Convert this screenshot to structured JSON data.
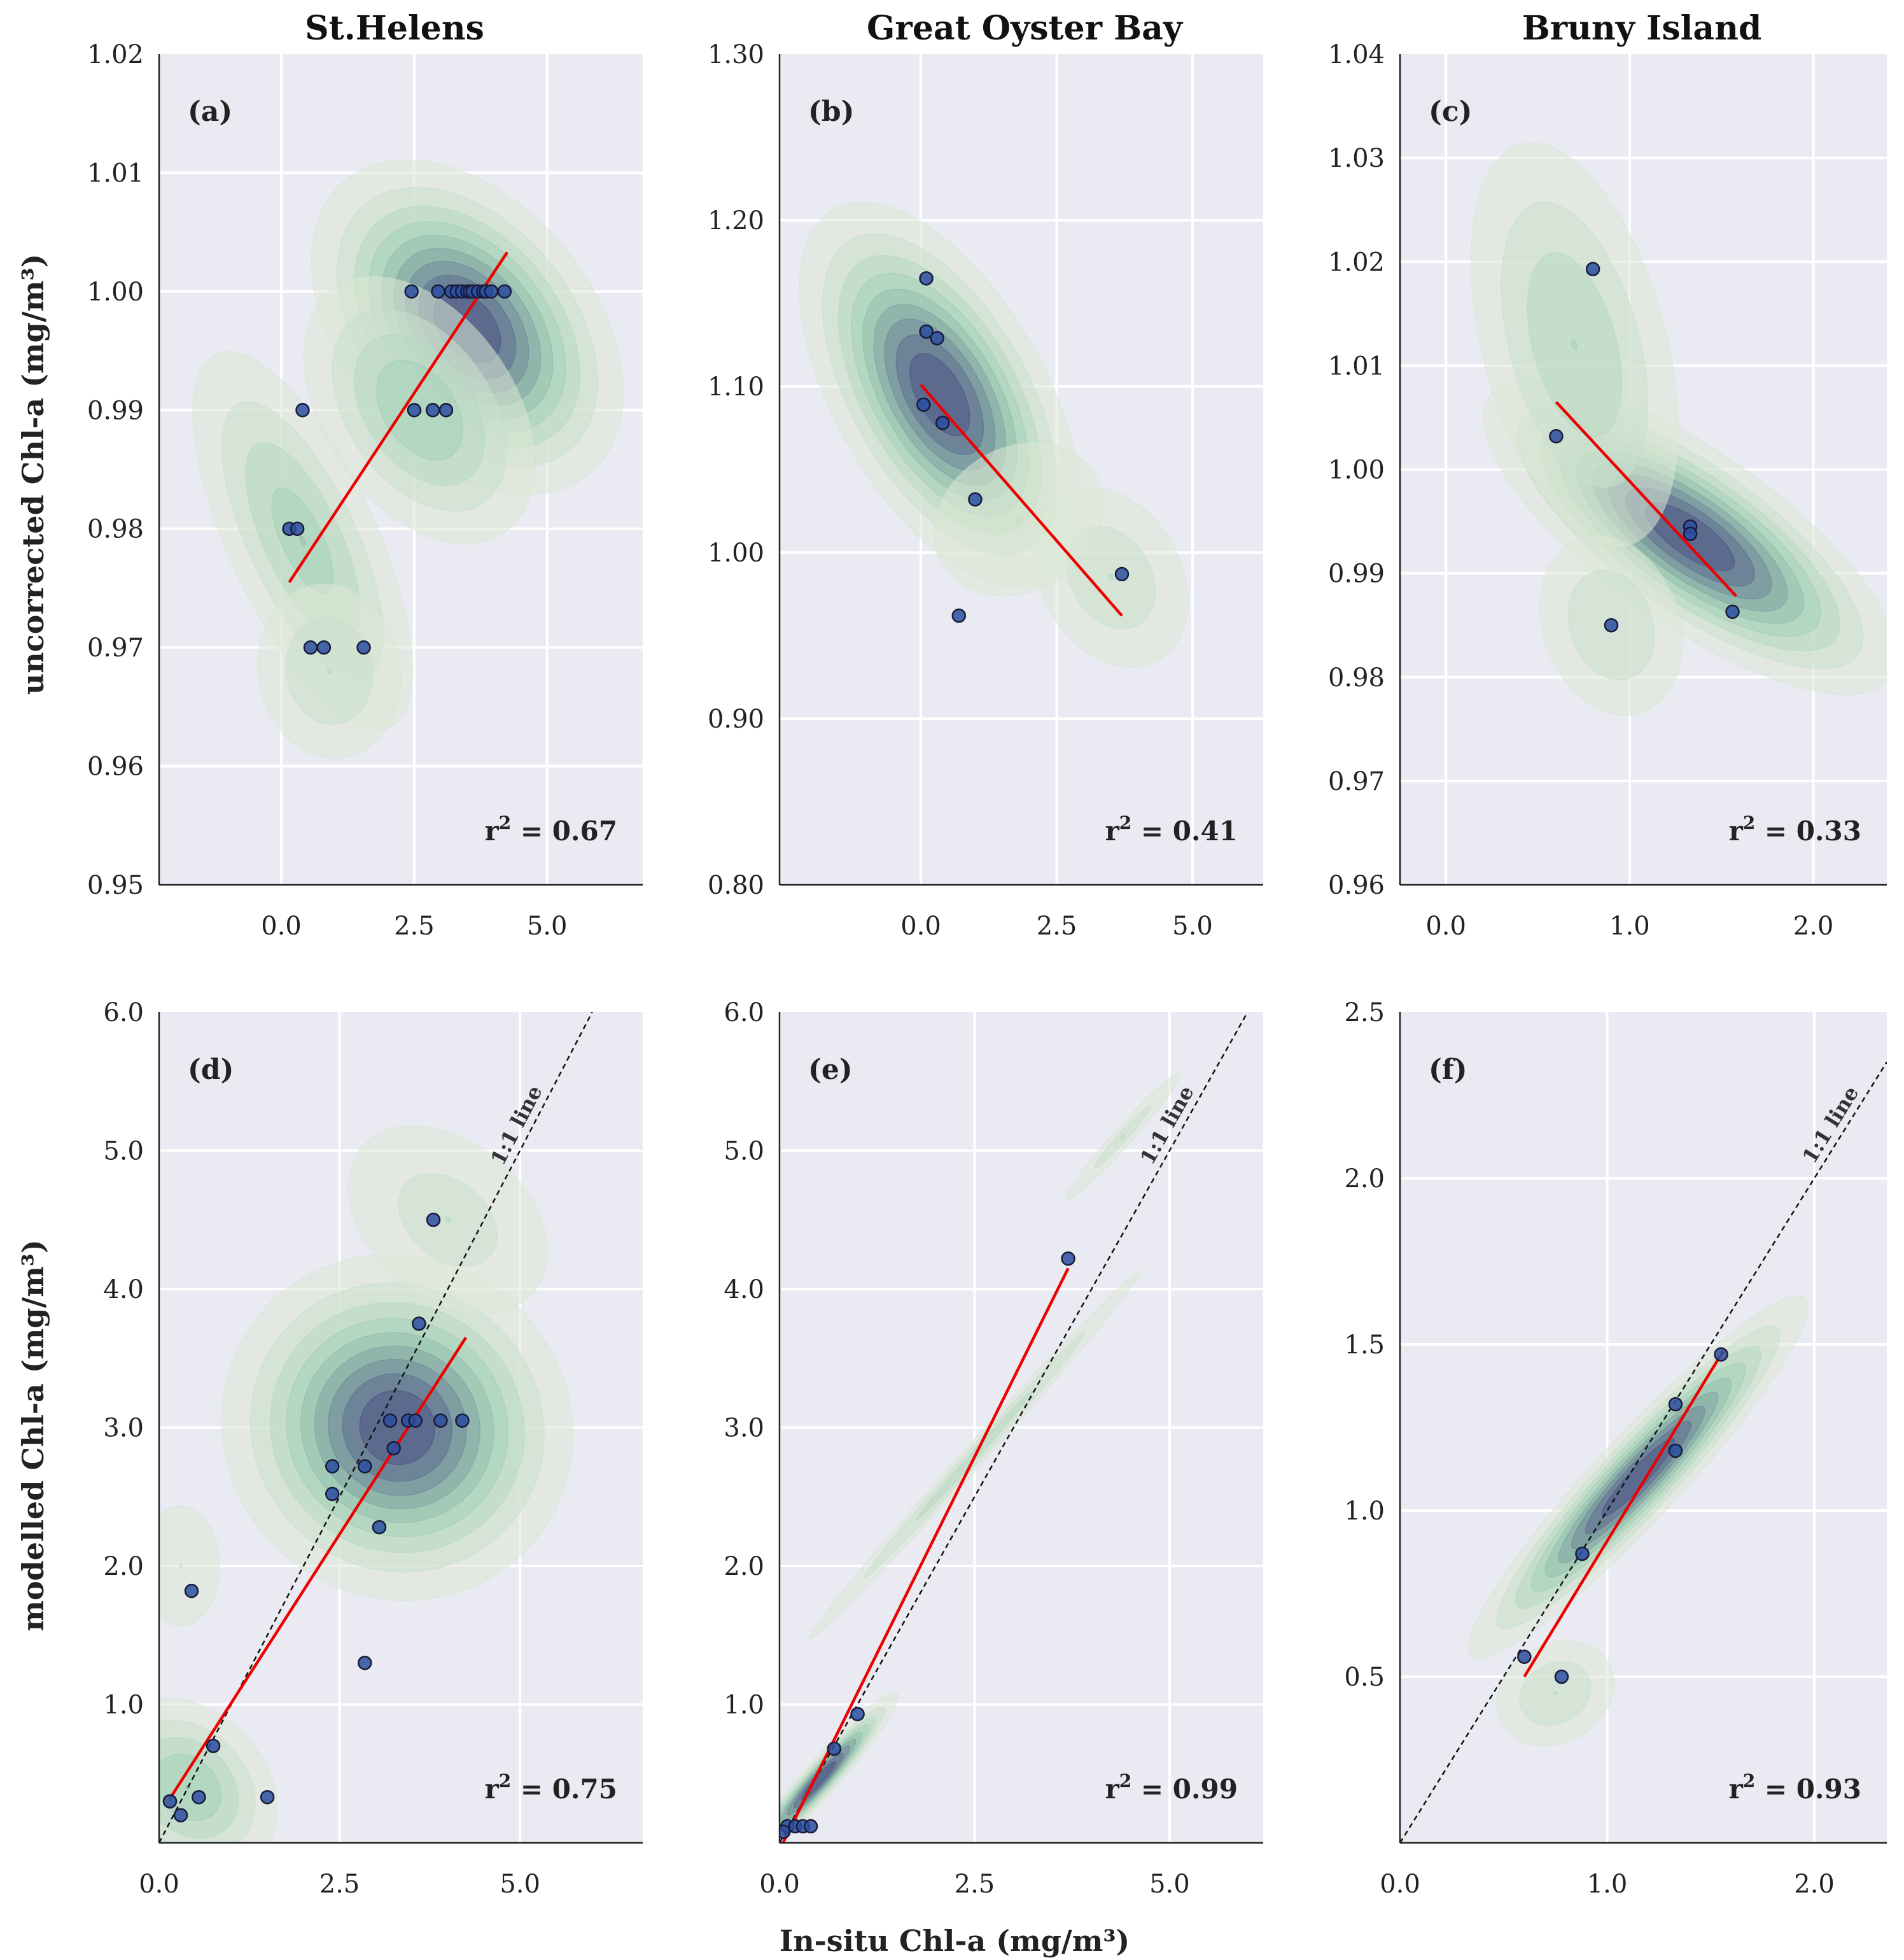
{
  "figure": {
    "column_titles": [
      "St.Helens",
      "Great Oyster Bay",
      "Bruny Island"
    ],
    "top_ylabel": "uncorrected Chl-a (mg/m³)",
    "bottom_ylabel": "modelled Chl-a (mg/m³)",
    "bottom_xlabel": "In-situ Chl-a (mg/m³)",
    "colors": {
      "panel_bg": "#eaeaf2",
      "grid": "#ffffff",
      "fit_line": "#ee0000",
      "one_to_one": "#111111",
      "point_fill": "#2a4fa0",
      "point_edge": "#1a1a3a",
      "kde_light": "#efeee0",
      "kde_mid": "#9ccfb4",
      "kde_dark": "#3b3a7a"
    }
  },
  "chart_data": [
    {
      "id": "a",
      "type": "scatter",
      "title": "St.Helens",
      "label": "(a)",
      "r2": "0.67",
      "xlim": [
        -2.3,
        6.8
      ],
      "ylim": [
        0.95,
        1.02
      ],
      "xticks": [
        0.0,
        2.5,
        5.0
      ],
      "xtick_labels": [
        "0.0",
        "2.5",
        "5.0"
      ],
      "yticks": [
        0.95,
        0.96,
        0.97,
        0.98,
        0.99,
        1.0,
        1.01,
        1.02
      ],
      "ytick_labels": [
        "0.95",
        "0.96",
        "0.97",
        "0.98",
        "0.99",
        "1.00",
        "1.01",
        "1.02"
      ],
      "points": [
        [
          2.45,
          1.0
        ],
        [
          2.95,
          1.0
        ],
        [
          3.2,
          1.0
        ],
        [
          3.3,
          1.0
        ],
        [
          3.4,
          1.0
        ],
        [
          3.5,
          1.0
        ],
        [
          3.55,
          1.0
        ],
        [
          3.6,
          1.0
        ],
        [
          3.7,
          1.0
        ],
        [
          3.8,
          1.0
        ],
        [
          3.85,
          1.0
        ],
        [
          3.95,
          1.0
        ],
        [
          4.2,
          1.0
        ],
        [
          0.4,
          0.99
        ],
        [
          2.5,
          0.99
        ],
        [
          2.85,
          0.99
        ],
        [
          3.1,
          0.99
        ],
        [
          0.15,
          0.98
        ],
        [
          0.3,
          0.98
        ],
        [
          0.55,
          0.97
        ],
        [
          0.8,
          0.97
        ],
        [
          1.55,
          0.97
        ]
      ],
      "fit": [
        [
          0.15,
          0.9755
        ],
        [
          4.25,
          1.0033
        ]
      ],
      "one_to_one": false,
      "kde": [
        {
          "c": [
            3.5,
            0.997
          ],
          "s": [
            1.1,
            0.0075
          ],
          "rot": -40,
          "w": 1.0
        },
        {
          "c": [
            2.6,
            0.99
          ],
          "s": [
            1.0,
            0.007
          ],
          "rot": -35,
          "w": 0.5
        },
        {
          "c": [
            0.4,
            0.979
          ],
          "s": [
            0.8,
            0.01
          ],
          "rot": -25,
          "w": 0.45
        },
        {
          "c": [
            0.9,
            0.968
          ],
          "s": [
            0.9,
            0.005
          ],
          "rot": -10,
          "w": 0.3
        }
      ]
    },
    {
      "id": "b",
      "type": "scatter",
      "title": "Great Oyster Bay",
      "label": "(b)",
      "r2": "0.41",
      "xlim": [
        -2.6,
        6.3
      ],
      "ylim": [
        0.8,
        1.3
      ],
      "xticks": [
        0.0,
        2.5,
        5.0
      ],
      "xtick_labels": [
        "0.0",
        "2.5",
        "5.0"
      ],
      "yticks": [
        0.8,
        0.9,
        1.0,
        1.1,
        1.2,
        1.3
      ],
      "ytick_labels": [
        "0.80",
        "0.90",
        "1.00",
        "1.10",
        "1.20",
        "1.30"
      ],
      "points": [
        [
          0.1,
          1.165
        ],
        [
          0.1,
          1.133
        ],
        [
          0.3,
          1.129
        ],
        [
          0.05,
          1.089
        ],
        [
          0.4,
          1.078
        ],
        [
          1.0,
          1.032
        ],
        [
          0.7,
          0.962
        ],
        [
          3.7,
          0.987
        ]
      ],
      "fit": [
        [
          0.0,
          1.101
        ],
        [
          3.7,
          0.962
        ]
      ],
      "one_to_one": false,
      "kde": [
        {
          "c": [
            0.35,
            1.095
          ],
          "s": [
            0.9,
            0.06
          ],
          "rot": -30,
          "w": 1.0
        },
        {
          "c": [
            3.5,
            0.985
          ],
          "s": [
            0.9,
            0.04
          ],
          "rot": -30,
          "w": 0.28
        },
        {
          "c": [
            1.8,
            1.02
          ],
          "s": [
            1.5,
            0.04
          ],
          "rot": -30,
          "w": 0.18
        }
      ]
    },
    {
      "id": "c",
      "type": "scatter",
      "title": "Bruny Island",
      "label": "(c)",
      "r2": "0.33",
      "xlim": [
        -0.25,
        2.4
      ],
      "ylim": [
        0.96,
        1.04
      ],
      "xticks": [
        0.0,
        1.0,
        2.0
      ],
      "xtick_labels": [
        "0.0",
        "1.0",
        "2.0"
      ],
      "yticks": [
        0.96,
        0.97,
        0.98,
        0.99,
        1.0,
        1.01,
        1.02,
        1.03,
        1.04
      ],
      "ytick_labels": [
        "0.96",
        "0.97",
        "0.98",
        "0.99",
        "1.00",
        "1.01",
        "1.02",
        "1.03",
        "1.04"
      ],
      "points": [
        [
          0.8,
          1.0193
        ],
        [
          0.6,
          1.0032
        ],
        [
          1.33,
          0.9945
        ],
        [
          1.33,
          0.9938
        ],
        [
          0.9,
          0.985
        ],
        [
          1.56,
          0.9863
        ]
      ],
      "fit": [
        [
          0.6,
          1.0065
        ],
        [
          1.58,
          0.9878
        ]
      ],
      "one_to_one": false,
      "kde": [
        {
          "c": [
            1.33,
            0.9935
          ],
          "s": [
            0.22,
            0.011
          ],
          "rot": -55,
          "w": 1.0
        },
        {
          "c": [
            0.7,
            1.012
          ],
          "s": [
            0.3,
            0.012
          ],
          "rot": -15,
          "w": 0.4
        },
        {
          "c": [
            0.9,
            0.985
          ],
          "s": [
            0.25,
            0.006
          ],
          "rot": -20,
          "w": 0.3
        }
      ]
    },
    {
      "id": "d",
      "type": "scatter",
      "label": "(d)",
      "r2": "0.75",
      "xlim": [
        0.0,
        6.7
      ],
      "ylim": [
        0.0,
        6.0
      ],
      "xticks": [
        0.0,
        2.5,
        5.0
      ],
      "xtick_labels": [
        "0.0",
        "2.5",
        "5.0"
      ],
      "yticks": [
        1.0,
        2.0,
        3.0,
        4.0,
        5.0,
        6.0
      ],
      "ytick_labels": [
        "1.0",
        "2.0",
        "3.0",
        "4.0",
        "5.0",
        "6.0"
      ],
      "points": [
        [
          3.8,
          4.5
        ],
        [
          3.6,
          3.75
        ],
        [
          3.2,
          3.05
        ],
        [
          3.45,
          3.05
        ],
        [
          3.55,
          3.05
        ],
        [
          3.9,
          3.05
        ],
        [
          4.2,
          3.05
        ],
        [
          3.25,
          2.85
        ],
        [
          2.4,
          2.72
        ],
        [
          2.85,
          2.72
        ],
        [
          2.4,
          2.52
        ],
        [
          3.05,
          2.28
        ],
        [
          0.45,
          1.82
        ],
        [
          2.85,
          1.3
        ],
        [
          0.75,
          0.7
        ],
        [
          0.55,
          0.33
        ],
        [
          1.5,
          0.33
        ],
        [
          0.15,
          0.3
        ],
        [
          0.3,
          0.2
        ]
      ],
      "fit": [
        [
          0.15,
          0.32
        ],
        [
          4.25,
          3.65
        ]
      ],
      "one_to_one": true,
      "one_to_one_label": "1:1 line",
      "kde": [
        {
          "c": [
            3.3,
            3.0
          ],
          "s": [
            1.1,
            0.6
          ],
          "rot": -55,
          "w": 1.0
        },
        {
          "c": [
            0.4,
            0.4
          ],
          "s": [
            0.6,
            0.4
          ],
          "rot": -45,
          "w": 0.5
        },
        {
          "c": [
            0.3,
            2.0
          ],
          "s": [
            0.5,
            0.4
          ],
          "rot": 0,
          "w": 0.18
        },
        {
          "c": [
            4.0,
            4.5
          ],
          "s": [
            0.8,
            0.6
          ],
          "rot": -50,
          "w": 0.25
        }
      ]
    },
    {
      "id": "e",
      "type": "scatter",
      "label": "(e)",
      "r2": "0.99",
      "xlim": [
        0.0,
        6.2
      ],
      "ylim": [
        0.0,
        6.0
      ],
      "xticks": [
        0.0,
        2.5,
        5.0
      ],
      "xtick_labels": [
        "0.0",
        "2.5",
        "5.0"
      ],
      "yticks": [
        1.0,
        2.0,
        3.0,
        4.0,
        5.0,
        6.0
      ],
      "ytick_labels": [
        "1.0",
        "2.0",
        "3.0",
        "4.0",
        "5.0",
        "6.0"
      ],
      "points": [
        [
          3.7,
          4.22
        ],
        [
          1.0,
          0.93
        ],
        [
          0.7,
          0.68
        ],
        [
          0.1,
          0.12
        ],
        [
          0.2,
          0.12
        ],
        [
          0.3,
          0.12
        ],
        [
          0.4,
          0.12
        ],
        [
          0.05,
          0.08
        ]
      ],
      "fit": [
        [
          0.0,
          -0.05
        ],
        [
          3.7,
          4.15
        ]
      ],
      "one_to_one": true,
      "one_to_one_label": "1:1 line",
      "kde": [
        {
          "c": [
            0.5,
            0.45
          ],
          "s": [
            0.7,
            0.06
          ],
          "rot": -48,
          "w": 1.0
        },
        {
          "c": [
            2.5,
            2.8
          ],
          "s": [
            2.0,
            0.05
          ],
          "rot": -48,
          "w": 0.35
        },
        {
          "c": [
            4.4,
            5.1
          ],
          "s": [
            0.8,
            0.05
          ],
          "rot": -48,
          "w": 0.25
        }
      ]
    },
    {
      "id": "f",
      "type": "scatter",
      "label": "(f)",
      "r2": "0.93",
      "xlim": [
        0.0,
        2.35
      ],
      "ylim": [
        0.0,
        2.5
      ],
      "xticks": [
        0.0,
        1.0,
        2.0
      ],
      "xtick_labels": [
        "0.0",
        "1.0",
        "2.0"
      ],
      "yticks": [
        0.5,
        1.0,
        1.5,
        2.0,
        2.5
      ],
      "ytick_labels": [
        "0.5",
        "1.0",
        "1.5",
        "2.0",
        "2.5"
      ],
      "points": [
        [
          1.55,
          1.47
        ],
        [
          1.33,
          1.32
        ],
        [
          1.33,
          1.18
        ],
        [
          0.88,
          0.87
        ],
        [
          0.6,
          0.56
        ],
        [
          0.78,
          0.5
        ]
      ],
      "fit": [
        [
          0.6,
          0.5
        ],
        [
          1.56,
          1.48
        ]
      ],
      "one_to_one": true,
      "one_to_one_label": "1:1 line",
      "kde": [
        {
          "c": [
            1.15,
            1.1
          ],
          "s": [
            0.55,
            0.06
          ],
          "rot": -47,
          "w": 1.0
        },
        {
          "c": [
            0.75,
            0.45
          ],
          "s": [
            0.2,
            0.1
          ],
          "rot": -30,
          "w": 0.3
        }
      ]
    }
  ]
}
